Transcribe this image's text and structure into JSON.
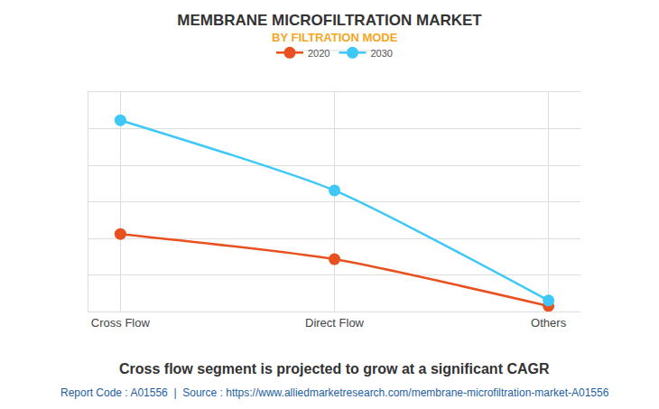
{
  "chart_data": {
    "type": "line",
    "title": "MEMBRANE MICROFILTRATION MARKET",
    "subtitle": "BY FILTRATION MODE",
    "caption": "Cross flow segment is projected to grow at a significant CAGR",
    "source": "Report Code : A01556  |  Source : https://www.alliedmarketresearch.com/membrane-microfiltration-market-A01556",
    "categories": [
      "Cross Flow",
      "Direct Flow",
      "Others"
    ],
    "series": [
      {
        "name": "2020",
        "color": "#e8501f",
        "values": [
          2.12,
          1.43,
          0.15
        ]
      },
      {
        "name": "2030",
        "color": "#3ec8f8",
        "values": [
          5.23,
          3.31,
          0.3
        ]
      }
    ],
    "ylim": [
      0,
      6
    ],
    "yticks": [
      0,
      1,
      2,
      3,
      4,
      5,
      6
    ],
    "grid": true,
    "legend": "top",
    "tick_labels": "x",
    "marker": "circle",
    "line_style": "spline"
  }
}
